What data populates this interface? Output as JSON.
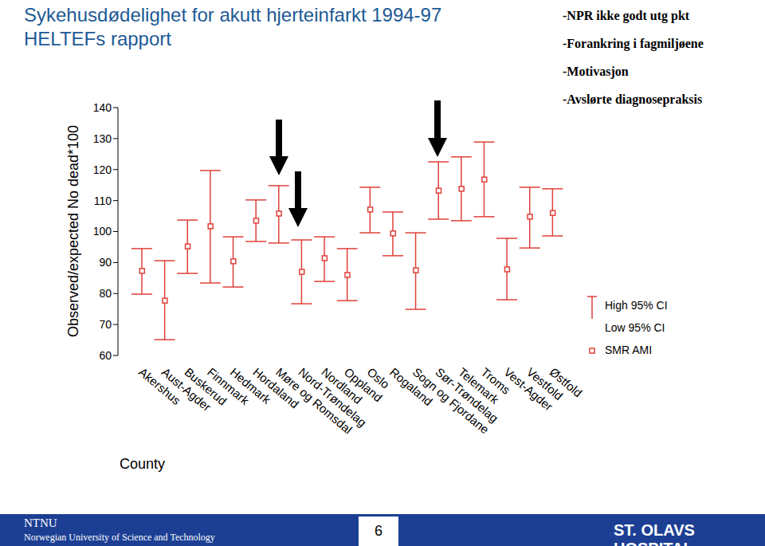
{
  "title": "Sykehusdødelighet for akutt hjerteinfarkt 1994-97",
  "subtitle": "HELTEFs rapport",
  "notes": [
    "-NPR ikke godt utg pkt",
    "-Forankring i fagmiljøene",
    "-Motivasjon",
    "-Avslørte diagnosepraksis"
  ],
  "footer": {
    "left": "NTNU",
    "left_sub": "Norwegian University of Science and Technology",
    "page": "6",
    "right": "ST. OLAVS HOSPITAL"
  },
  "chart_data": {
    "type": "errorbar",
    "x_label": "County",
    "y_label": "Observed/expected No dead*100",
    "categories": [
      "Akershus",
      "Aust-Agder",
      "Buskerud",
      "Finnmark",
      "Hedmark",
      "Hordaland",
      "Møre og Romsdal",
      "Nord-Trøndelag",
      "Nordland",
      "Oppland",
      "Oslo",
      "Rogaland",
      "Sogn og Fjordane",
      "Sør-Trøndelag",
      "Telemark",
      "Troms",
      "Vest-Agder",
      "Vestfold",
      "Østfold"
    ],
    "series": [
      {
        "name": "SMR AMI",
        "color": "#e0403a",
        "marker": "square",
        "values": [
          87.3,
          77.7,
          95.2,
          101.7,
          90.4,
          103.5,
          105.8,
          87.0,
          91.4,
          86.0,
          107.1,
          99.4,
          87.5,
          113.2,
          113.8,
          116.8,
          87.8,
          104.8,
          106.0
        ]
      }
    ],
    "error_bars": {
      "high": {
        "name": "High 95% CI",
        "values": [
          94.5,
          90.6,
          103.7,
          119.7,
          98.3,
          110.2,
          114.8,
          97.3,
          98.3,
          94.5,
          114.3,
          106.3,
          99.6,
          122.5,
          124.1,
          128.9,
          97.8,
          114.3,
          113.8
        ]
      },
      "low": {
        "name": "Low 95% CI",
        "values": [
          79.8,
          65.1,
          86.5,
          83.4,
          82.1,
          96.8,
          96.3,
          76.7,
          83.9,
          77.7,
          99.6,
          92.2,
          74.9,
          104.0,
          103.5,
          104.8,
          78.0,
          94.7,
          98.6
        ]
      }
    },
    "ylim": [
      60,
      140
    ],
    "yticks": [
      60,
      70,
      80,
      90,
      100,
      110,
      120,
      130,
      140
    ],
    "grid": false,
    "legend": "right"
  }
}
